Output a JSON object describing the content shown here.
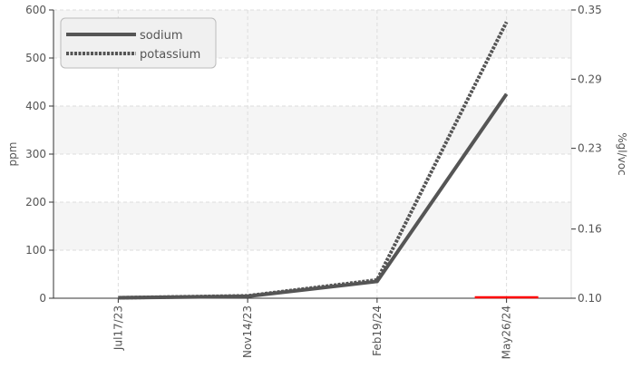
{
  "chart_data": {
    "type": "line",
    "categories": [
      "Jul17/23",
      "Nov14/23",
      "Feb19/24",
      "May26/24"
    ],
    "ylabel": "ppm",
    "y2label": "%gl/voc",
    "ylim": [
      0,
      600
    ],
    "yticks": [
      0,
      100,
      200,
      300,
      400,
      500,
      600
    ],
    "y2lim": [
      0.1,
      0.35
    ],
    "y2ticks": [
      "0.10",
      "0.16",
      "0.23",
      "0.29",
      "0.35"
    ],
    "grid": true,
    "legend_position": "top-left",
    "series": [
      {
        "name": "sodium",
        "values": [
          1,
          4,
          35,
          425
        ],
        "style": "solid",
        "color": "#555555"
      },
      {
        "name": "potassium",
        "values": [
          1,
          5,
          38,
          575
        ],
        "style": "dashed",
        "color": "#555555"
      }
    ],
    "secondary_series": [
      {
        "values": [
          null,
          null,
          null,
          0.1
        ],
        "color": "#ff0000"
      }
    ],
    "colors": {
      "band": "#f5f5f5",
      "grid": "#dddddd",
      "axis": "#333333",
      "text": "#555555"
    }
  }
}
